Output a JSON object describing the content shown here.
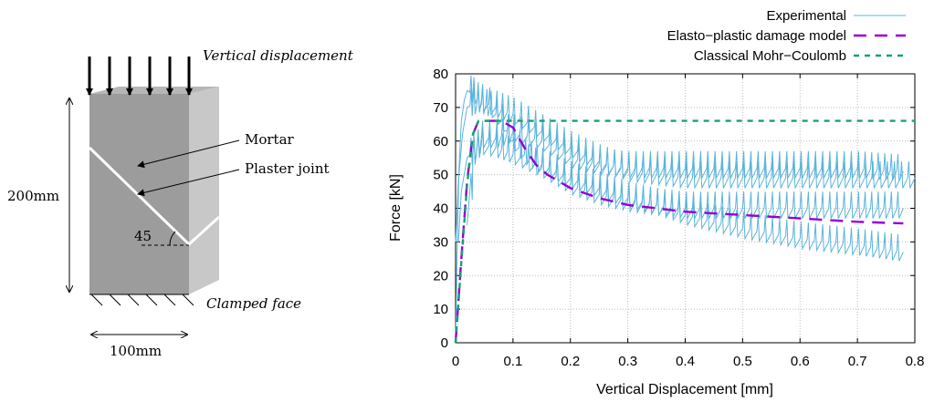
{
  "schematic": {
    "top_label": "Vertical displacement",
    "mortar_label": "Mortar",
    "joint_label": "Plaster joint",
    "height_label": "200mm",
    "angle_label": "45",
    "bottom_label": "Clamped face",
    "width_label": "100mm",
    "colors": {
      "front": "#9c9c9c",
      "side": "#c8c8c8",
      "top": "#b6b6b6",
      "joint": "#ffffff"
    }
  },
  "chart_data": {
    "type": "line",
    "title": "",
    "xlabel": "Vertical Displacement [mm]",
    "ylabel": "Force [kN]",
    "xlim": [
      0,
      0.8
    ],
    "ylim": [
      0,
      80
    ],
    "xticks": [
      "0",
      "0.1",
      "0.2",
      "0.3",
      "0.4",
      "0.5",
      "0.6",
      "0.7",
      "0.8"
    ],
    "yticks": [
      "0",
      "10",
      "20",
      "30",
      "40",
      "50",
      "60",
      "70",
      "80"
    ],
    "grid": true,
    "legend_position": "top-right",
    "series": [
      {
        "name": "Experimental",
        "color": "#5bb4dc",
        "style": "solid",
        "branches": [
          {
            "x": [
              0.0,
              0.003,
              0.006,
              0.01,
              0.015,
              0.02,
              0.03,
              0.045,
              0.06,
              0.08,
              0.1,
              0.12,
              0.15,
              0.2,
              0.25,
              0.3,
              0.35,
              0.4,
              0.5,
              0.6,
              0.7,
              0.78
            ],
            "y": [
              0,
              30,
              52,
              66,
              72,
              75,
              74,
              71,
              70,
              66,
              60,
              56,
              53,
              49,
              46,
              43,
              41,
              38,
              34,
              31,
              29,
              27
            ]
          },
          {
            "x": [
              0.0,
              0.005,
              0.012,
              0.02,
              0.03,
              0.045,
              0.07,
              0.1,
              0.15,
              0.2,
              0.25,
              0.3,
              0.35,
              0.4,
              0.45,
              0.5,
              0.6,
              0.7,
              0.8
            ],
            "y": [
              30,
              48,
              62,
              70,
              71,
              72,
              70,
              68,
              63,
              58,
              54,
              51,
              50,
              49,
              49,
              49,
              49,
              49,
              49
            ]
          },
          {
            "x": [
              0.005,
              0.01,
              0.02,
              0.03,
              0.045,
              0.07,
              0.1,
              0.15,
              0.2,
              0.25,
              0.3,
              0.35,
              0.4,
              0.5,
              0.6,
              0.7,
              0.78
            ],
            "y": [
              30,
              45,
              55,
              57,
              59,
              58,
              56,
              52,
              47,
              44,
              42,
              41,
              40,
              40,
              40,
              40,
              40
            ]
          },
          {
            "x": [
              0.02,
              0.03,
              0.045,
              0.07,
              0.1,
              0.15,
              0.2,
              0.25,
              0.3,
              0.4,
              0.5,
              0.6,
              0.7,
              0.78
            ],
            "y": [
              35,
              56,
              61,
              61,
              63,
              60,
              55,
              53,
              52,
              52,
              52,
              52,
              52,
              51
            ]
          }
        ]
      },
      {
        "name": "Elasto−plastic damage model",
        "color": "#9400d3",
        "style": "long-dash",
        "x": [
          0.0,
          0.01,
          0.02,
          0.03,
          0.04,
          0.05,
          0.08,
          0.1,
          0.12,
          0.14,
          0.16,
          0.2,
          0.25,
          0.3,
          0.35,
          0.4,
          0.5,
          0.6,
          0.7,
          0.78
        ],
        "y": [
          0,
          25,
          48,
          62,
          66,
          66,
          66,
          64,
          58,
          53,
          50,
          46,
          43,
          41,
          40,
          39,
          38,
          37,
          36,
          35.5
        ]
      },
      {
        "name": "Classical Mohr−Coulomb",
        "color": "#1a9e77",
        "style": "short-dash",
        "x": [
          0.0,
          0.01,
          0.02,
          0.03,
          0.04,
          0.05,
          0.8
        ],
        "y": [
          0,
          24,
          47,
          62,
          66,
          66,
          66
        ]
      }
    ]
  }
}
